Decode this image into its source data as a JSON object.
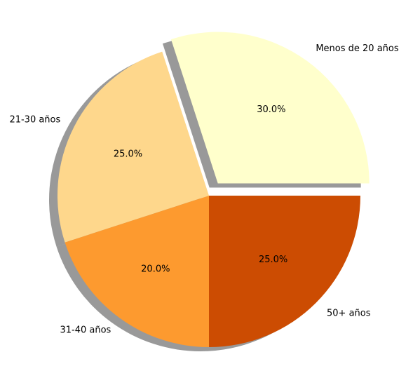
{
  "chart_data": {
    "type": "pie",
    "title": "",
    "slices": [
      {
        "label": "Menos de 20 años",
        "value": 30,
        "pct_text": "30.0%",
        "color": "#ffffcc",
        "exploded": true
      },
      {
        "label": "21-30 años",
        "value": 25,
        "pct_text": "25.0%",
        "color": "#fed78c",
        "exploded": false
      },
      {
        "label": "31-40 años",
        "value": 20,
        "pct_text": "20.0%",
        "color": "#fd9a2f",
        "exploded": false
      },
      {
        "label": "50+ años",
        "value": 25,
        "pct_text": "25.0%",
        "color": "#cc4c02",
        "exploded": false
      }
    ],
    "start_angle_deg": 0,
    "direction": "counterclockwise",
    "shadow": true,
    "legend": "none"
  }
}
